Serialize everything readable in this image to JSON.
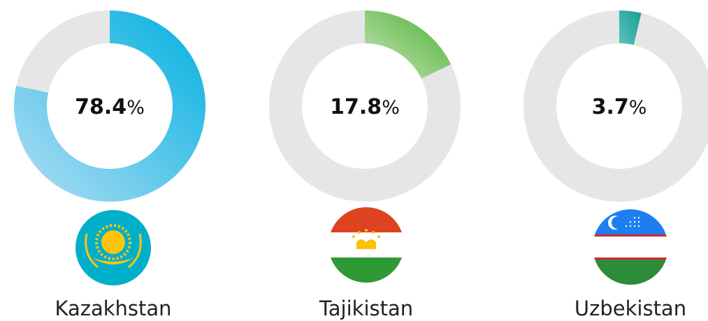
{
  "chart_data": [
    {
      "type": "donut",
      "categories": [
        "Kazakhstan"
      ],
      "values": [
        78.4
      ],
      "unit": "%",
      "color": "#00b0e0",
      "gradient": [
        "#b3def4",
        "#00b0e0"
      ]
    },
    {
      "type": "donut",
      "categories": [
        "Tajikistan"
      ],
      "values": [
        17.8
      ],
      "unit": "%",
      "color": "#4caf32",
      "gradient": [
        "#c8e6bb",
        "#4caf32"
      ]
    },
    {
      "type": "donut",
      "categories": [
        "Uzbekistan"
      ],
      "values": [
        3.7
      ],
      "unit": "%",
      "color": "#1a9c95",
      "gradient": [
        "#5cc3bd",
        "#1a9c95"
      ]
    }
  ]
}
